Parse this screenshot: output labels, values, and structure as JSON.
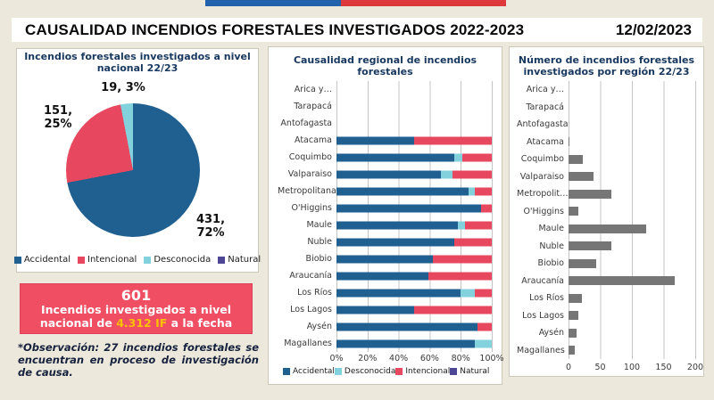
{
  "header": {
    "title": "CAUSALIDAD INCENDIOS FORESTALES INVESTIGADOS 2022-2023",
    "date": "12/02/2023"
  },
  "flag": {
    "blue": "#2262AC",
    "red": "#DE3A3E"
  },
  "colors": {
    "accidental": "#1F6090",
    "intencional": "#E8485F",
    "desconocida": "#82D1DC",
    "natural": "#4D4796",
    "region_bar_gray": "#767676",
    "title_navy": "#17375E",
    "summary_box": "#F04E63",
    "summary_highlight": "#FFC000",
    "background": "#ECE8DB"
  },
  "chart_data": [
    {
      "id": "pie_national",
      "type": "pie",
      "title": "Incendios forestales investigados a nivel\nnacional 22/23",
      "slices": [
        {
          "label": "Accidental",
          "value": 431,
          "pct": 72,
          "color": "#1F6090",
          "data_label": "431,\n72%"
        },
        {
          "label": "Intencional",
          "value": 151,
          "pct": 25,
          "color": "#E8485F",
          "data_label": "151,\n25%"
        },
        {
          "label": "Desconocida",
          "value": 19,
          "pct": 3,
          "color": "#82D1DC",
          "data_label": "19, 3%"
        },
        {
          "label": "Natural",
          "value": 0,
          "pct": 0,
          "color": "#4D4796",
          "data_label": ""
        }
      ],
      "legend": [
        "Accidental",
        "Intencional",
        "Desconocida",
        "Natural"
      ],
      "legend_position": "bottom"
    },
    {
      "id": "stacked_regional",
      "type": "bar",
      "stacked_percent": true,
      "title": "Causalidad regional de incendios\nforestales",
      "categories": [
        "Arica y…",
        "Tarapacá",
        "Antofagasta",
        "Atacama",
        "Coquimbo",
        "Valparaiso",
        "Metropolitana",
        "O'Higgins",
        "Maule",
        "Ñuble",
        "Biobio",
        "Araucanía",
        "Los Ríos",
        "Los Lagos",
        "Aysén",
        "Magallanes"
      ],
      "series": [
        {
          "name": "Accidental",
          "color": "#1F6090",
          "values": [
            0,
            0,
            0,
            50,
            76,
            67,
            85,
            93,
            78,
            76,
            62,
            59,
            80,
            50,
            91,
            89
          ]
        },
        {
          "name": "Desconocida",
          "color": "#82D1DC",
          "values": [
            0,
            0,
            0,
            0,
            5,
            8,
            4,
            0,
            5,
            0,
            0,
            0,
            9,
            0,
            0,
            11
          ]
        },
        {
          "name": "Intencional",
          "color": "#E8485F",
          "values": [
            0,
            0,
            0,
            50,
            19,
            25,
            11,
            7,
            17,
            24,
            38,
            41,
            11,
            50,
            9,
            0
          ]
        },
        {
          "name": "Natural",
          "color": "#4D4796",
          "values": [
            0,
            0,
            0,
            0,
            0,
            0,
            0,
            0,
            0,
            0,
            0,
            0,
            0,
            0,
            0,
            0
          ]
        }
      ],
      "x_ticks": [
        "0%",
        "20%",
        "40%",
        "60%",
        "80%",
        "100%"
      ],
      "xlim": [
        0,
        100
      ],
      "grid": true,
      "legend": [
        "Accidental",
        "Desconocida",
        "Intencional",
        "Natural"
      ],
      "legend_position": "bottom"
    },
    {
      "id": "investigated_by_region",
      "type": "bar",
      "title": "Número de incendios forestales\ninvestigados por región 22/23",
      "categories": [
        "Arica y…",
        "Tarapacá",
        "Antofagasta",
        "Atacama",
        "Coquimbo",
        "Valparaiso",
        "Metropolit…",
        "O'Higgins",
        "Maule",
        "Ñuble",
        "Biobio",
        "Araucanía",
        "Los Ríos",
        "Los Lagos",
        "Aysén",
        "Magallanes"
      ],
      "values": [
        0,
        0,
        0,
        2,
        22,
        40,
        67,
        15,
        122,
        68,
        43,
        167,
        21,
        16,
        12,
        10
      ],
      "bar_color": "#767676",
      "x_ticks": [
        "0",
        "50",
        "100",
        "150",
        "200"
      ],
      "xlim": [
        0,
        200
      ],
      "grid": true
    }
  ],
  "summary": {
    "count": "601",
    "line_prefix": "Incendios investigados a nivel nacional de ",
    "highlight": "4.312 IF",
    "line_suffix": " a la fecha"
  },
  "observation": "*Observación: 27 incendios forestales se encuentran en proceso de investigación de causa."
}
